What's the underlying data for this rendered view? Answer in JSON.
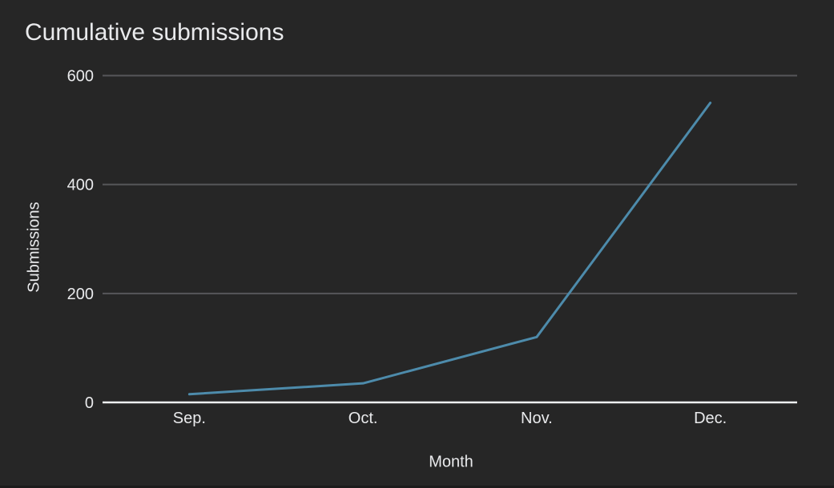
{
  "chart_data": {
    "type": "line",
    "title": "Cumulative submissions",
    "xlabel": "Month",
    "ylabel": "Submissions",
    "categories": [
      "Sep.",
      "Oct.",
      "Nov.",
      "Dec."
    ],
    "values": [
      15,
      35,
      120,
      550
    ],
    "y_ticks": [
      0,
      200,
      400,
      600
    ],
    "ylim": [
      0,
      600
    ],
    "grid": true,
    "legend": "none",
    "colors": {
      "background": "#262626",
      "text": "#e9eaec",
      "grid": "#56575a",
      "axis": "#eef0f1",
      "series": "#4d8bab"
    }
  }
}
